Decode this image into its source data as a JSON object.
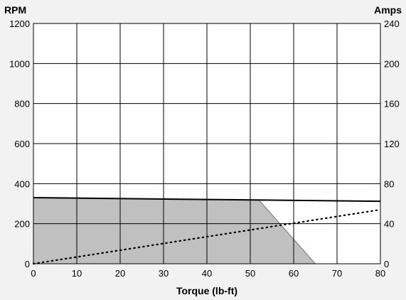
{
  "chart_data": {
    "type": "line",
    "title": "",
    "xlabel": "Torque (lb-ft)",
    "ylabel_left": "RPM",
    "ylabel_right": "Amps",
    "xlim": [
      0,
      80
    ],
    "ylim_left": [
      0,
      1200
    ],
    "ylim_right": [
      0,
      240
    ],
    "xticks": [
      0,
      10,
      20,
      30,
      40,
      50,
      60,
      70,
      80
    ],
    "yticks_left": [
      0,
      200,
      400,
      600,
      800,
      1000,
      1200
    ],
    "yticks_right": [
      0,
      40,
      80,
      120,
      160,
      200,
      240
    ],
    "grid": true,
    "series": [
      {
        "axis": "left",
        "style": "solid",
        "x": [
          0,
          80
        ],
        "y": [
          330,
          312
        ]
      },
      {
        "axis": "right",
        "style": "dotted",
        "x": [
          0,
          80
        ],
        "y": [
          0,
          54
        ]
      }
    ],
    "shaded_region": {
      "axis": "left",
      "x": [
        0,
        0,
        52,
        65
      ],
      "y": [
        0,
        330,
        318,
        0
      ]
    },
    "colors": {
      "shade": "#c0c0c0",
      "line": "#000000",
      "grid": "#000000",
      "plot_background": "#ffffff",
      "page_background": "#f2f2f2"
    }
  }
}
